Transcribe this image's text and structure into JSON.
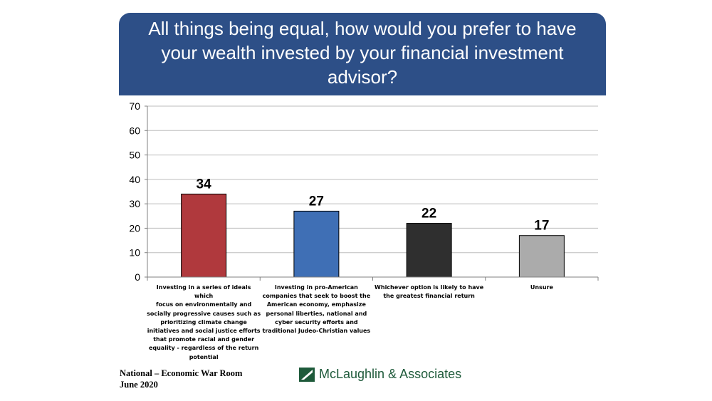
{
  "title": "All things being equal, how would you prefer to have your wealth invested by your financial investment advisor?",
  "colors": {
    "title_bg": "#2d4f87",
    "bar_colors": [
      "#b0393d",
      "#3f6fb5",
      "#2f2f2f",
      "#ababab"
    ],
    "logo_green": "#1e5a3a"
  },
  "chart_data": {
    "type": "bar",
    "categories": [
      "Investing in a series of ideals which focus on environmentally and socially progressive causes such as prioritizing climate change initiatives and social justice efforts that promote racial and gender equality - regardless of the return potential",
      "Investing in pro-American companies that seek to boost the American economy, emphasize personal liberties, national and cyber security efforts and traditional Judeo-Christian values",
      "Whichever option is likely to have the greatest financial return",
      "Unsure"
    ],
    "category_lines": [
      [
        "Investing in a series of ideals which",
        "focus on environmentally and",
        "socially progressive causes such as",
        "prioritizing climate change",
        "initiatives and social justice efforts",
        "that promote racial and gender",
        "equality - regardless of the return",
        "potential"
      ],
      [
        "Investing in pro-American",
        "companies that seek to boost the",
        "American economy, emphasize",
        "personal liberties, national and",
        "cyber security efforts and",
        "traditional Judeo-Christian values"
      ],
      [
        "Whichever option is likely to have",
        "the greatest financial return"
      ],
      [
        "Unsure"
      ]
    ],
    "values": [
      34,
      27,
      22,
      17
    ],
    "data_labels": [
      "34",
      "27",
      "22",
      "17"
    ],
    "ylim": [
      0,
      70
    ],
    "yticks": [
      0,
      10,
      20,
      30,
      40,
      50,
      60,
      70
    ],
    "grid": true,
    "legend": "none",
    "xlabel": "",
    "ylabel": ""
  },
  "footer": {
    "line1": "National – Economic War Room",
    "line2": "June 2020",
    "logo_icon": "mclaughlin-logo-icon",
    "logo_text": "McLaughlin & Associates"
  }
}
